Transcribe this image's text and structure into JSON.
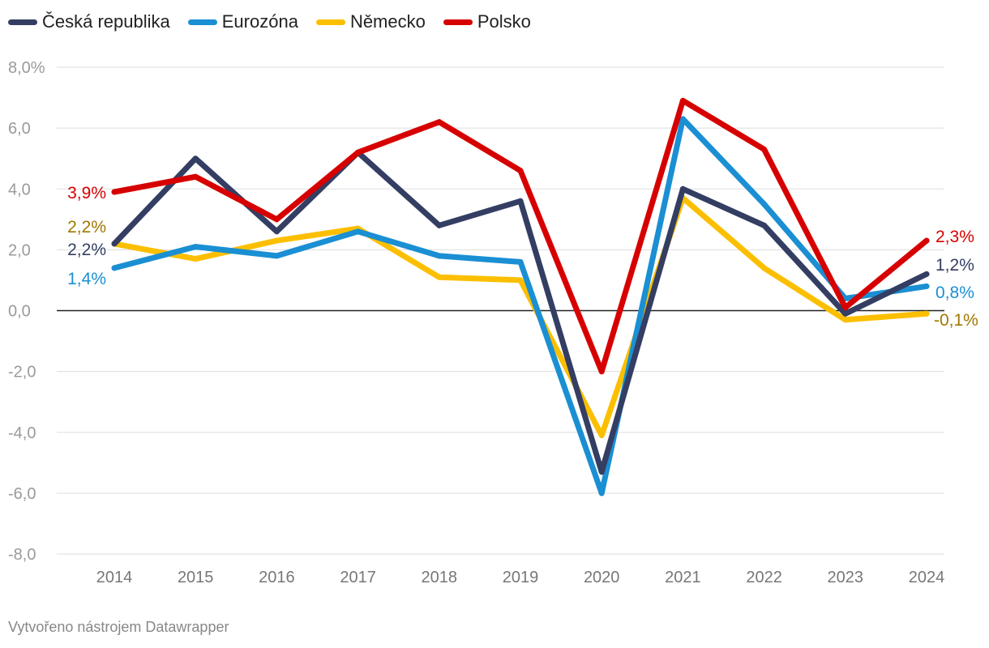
{
  "chart_data": {
    "type": "line",
    "categories": [
      "2014",
      "2015",
      "2016",
      "2017",
      "2018",
      "2019",
      "2020",
      "2021",
      "2022",
      "2023",
      "2024"
    ],
    "y_ticks": [
      "8,0%",
      "6,0",
      "4,0",
      "2,0",
      "0,0",
      "-2,0",
      "-4,0",
      "-6,0",
      "-8,0"
    ],
    "y_tick_values": [
      8,
      6,
      4,
      2,
      0,
      -2,
      -4,
      -6,
      -8
    ],
    "ylim": [
      -8,
      8
    ],
    "series": [
      {
        "name": "Německo",
        "color": "#fbbf00",
        "label_color": "#a07800",
        "values": [
          2.2,
          1.7,
          2.3,
          2.7,
          1.1,
          1.0,
          -4.1,
          3.7,
          1.4,
          -0.3,
          -0.1
        ],
        "start_label": "2,2%",
        "end_label": "-0,1%"
      },
      {
        "name": "Eurozóna",
        "color": "#1a8fd3",
        "label_color": "#1a8fd3",
        "values": [
          1.4,
          2.1,
          1.8,
          2.6,
          1.8,
          1.6,
          -6.0,
          6.3,
          3.5,
          0.4,
          0.8
        ],
        "start_label": "1,4%",
        "end_label": "0,8%"
      },
      {
        "name": "Česká republika",
        "color": "#343e63",
        "label_color": "#343e63",
        "values": [
          2.2,
          5.0,
          2.6,
          5.2,
          2.8,
          3.6,
          -5.3,
          4.0,
          2.8,
          -0.1,
          1.2
        ],
        "start_label": "2,2%",
        "end_label": "1,2%"
      },
      {
        "name": "Polsko",
        "color": "#d70000",
        "label_color": "#d70000",
        "values": [
          3.9,
          4.4,
          3.0,
          5.2,
          6.2,
          4.6,
          -2.0,
          6.9,
          5.3,
          0.1,
          2.3
        ],
        "start_label": "3,9%",
        "end_label": "2,3%"
      }
    ]
  },
  "legend": [
    {
      "label": "Česká republika",
      "color": "#343e63"
    },
    {
      "label": "Eurozóna",
      "color": "#1a8fd3"
    },
    {
      "label": "Německo",
      "color": "#fbbf00"
    },
    {
      "label": "Polsko",
      "color": "#d70000"
    }
  ],
  "footer": {
    "credit": "Vytvořeno nástrojem Datawrapper"
  }
}
